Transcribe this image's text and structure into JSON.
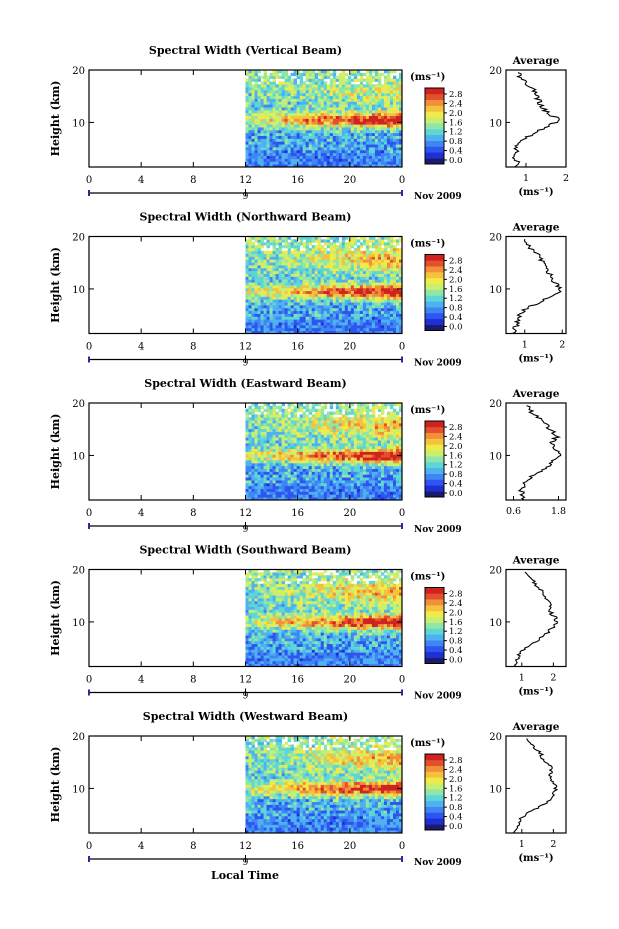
{
  "figure": {
    "x_axis_title": "Local Time",
    "date_label": "9",
    "month_label": "Nov 2009"
  },
  "colorbar": {
    "unit": "(ms⁻¹)",
    "ticks": [
      "0.0",
      "0.4",
      "0.8",
      "1.2",
      "1.6",
      "2.0",
      "2.4",
      "2.8"
    ],
    "colors": [
      "#1a1a6e",
      "#1f2fd6",
      "#2f55f0",
      "#3f86f5",
      "#4fb2f0",
      "#5fd6d6",
      "#8fe6a6",
      "#c8ef72",
      "#f0ea4a",
      "#f6c23e",
      "#f2903a",
      "#e3502e",
      "#d0221e"
    ]
  },
  "chart_data": [
    {
      "type": "heatmap",
      "title": "Spectral Width (Vertical Beam)",
      "xlabel": "",
      "ylabel": "Height (km)",
      "xticks": [
        "0",
        "4",
        "8",
        "12",
        "16",
        "20",
        "0"
      ],
      "xlim": [
        0,
        24
      ],
      "yticks": [
        "10",
        "20"
      ],
      "ylim": [
        1.5,
        20
      ],
      "data_start_hour": 12,
      "data_end_hour": 24,
      "colorbar_ticks": [
        "0.0",
        "0.4",
        "0.8",
        "1.2",
        "1.6",
        "2.0",
        "2.4",
        "2.8"
      ],
      "high_band_km": 10.5,
      "average_profile": {
        "title": "Average",
        "xlabel": "(ms⁻¹)",
        "xticks": [
          "1",
          "2"
        ],
        "xlim": [
          0.5,
          2.0
        ],
        "yticks": [
          "10",
          "20"
        ],
        "ylim": [
          1.5,
          20
        ],
        "height_km": [
          1.5,
          2.5,
          3.5,
          4.5,
          5.5,
          6.5,
          7.5,
          8.5,
          9.5,
          10.5,
          11.5,
          12.5,
          13.5,
          14.5,
          15.5,
          16.5,
          17.5,
          18.5,
          19.5
        ],
        "values": [
          0.7,
          0.8,
          0.65,
          0.75,
          0.7,
          0.9,
          1.1,
          1.35,
          1.6,
          1.85,
          1.6,
          1.45,
          1.35,
          1.3,
          1.25,
          1.15,
          1.0,
          0.85,
          0.8
        ]
      }
    },
    {
      "type": "heatmap",
      "title": "Spectral Width (Northward Beam)",
      "xlabel": "",
      "ylabel": "Height (km)",
      "xticks": [
        "0",
        "4",
        "8",
        "12",
        "16",
        "20",
        "0"
      ],
      "xlim": [
        0,
        24
      ],
      "yticks": [
        "10",
        "20"
      ],
      "ylim": [
        1.5,
        20
      ],
      "data_start_hour": 12,
      "data_end_hour": 24,
      "colorbar_ticks": [
        "0.0",
        "0.4",
        "0.8",
        "1.2",
        "1.6",
        "2.0",
        "2.4",
        "2.8"
      ],
      "high_band_km": 9.5,
      "average_profile": {
        "title": "Average",
        "xlabel": "(ms⁻¹)",
        "xticks": [
          "1",
          "2"
        ],
        "xlim": [
          0.5,
          2.1
        ],
        "yticks": [
          "10",
          "20"
        ],
        "ylim": [
          1.5,
          20
        ],
        "height_km": [
          1.5,
          2.5,
          3.5,
          4.5,
          5.5,
          6.5,
          7.5,
          8.5,
          9.5,
          10.5,
          11.5,
          12.5,
          13.5,
          14.5,
          15.5,
          16.5,
          17.5,
          18.5,
          19.5
        ],
        "values": [
          0.7,
          0.75,
          0.8,
          0.85,
          0.9,
          1.1,
          1.4,
          1.7,
          2.0,
          1.9,
          1.75,
          1.7,
          1.6,
          1.55,
          1.45,
          1.35,
          1.2,
          1.05,
          1.0
        ]
      }
    },
    {
      "type": "heatmap",
      "title": "Spectral Width (Eastward Beam)",
      "xlabel": "",
      "ylabel": "Height (km)",
      "xticks": [
        "0",
        "4",
        "8",
        "12",
        "16",
        "20",
        "0"
      ],
      "xlim": [
        0,
        24
      ],
      "yticks": [
        "10",
        "20"
      ],
      "ylim": [
        1.5,
        20
      ],
      "data_start_hour": 12,
      "data_end_hour": 24,
      "colorbar_ticks": [
        "0.0",
        "0.4",
        "0.8",
        "1.2",
        "1.6",
        "2.0",
        "2.4",
        "2.8"
      ],
      "high_band_km": 10.0,
      "average_profile": {
        "title": "Average",
        "xlabel": "",
        "xticks": [
          "0.6",
          "1.8"
        ],
        "xlim": [
          0.4,
          2.0
        ],
        "yticks": [
          "10",
          "20"
        ],
        "ylim": [
          1.5,
          20
        ],
        "height_km": [
          1.5,
          2.5,
          3.5,
          4.5,
          5.5,
          6.5,
          7.5,
          8.5,
          9.5,
          10.5,
          11.5,
          12.5,
          13.5,
          14.5,
          15.5,
          16.5,
          17.5,
          18.5,
          19.5
        ],
        "values": [
          0.9,
          0.85,
          0.8,
          0.9,
          1.0,
          1.2,
          1.45,
          1.6,
          1.75,
          1.85,
          1.7,
          1.6,
          1.75,
          1.65,
          1.5,
          1.4,
          1.2,
          1.05,
          0.95
        ]
      }
    },
    {
      "type": "heatmap",
      "title": "Spectral Width (Southward Beam)",
      "xlabel": "",
      "ylabel": "Height (km)",
      "xticks": [
        "0",
        "4",
        "8",
        "12",
        "16",
        "20",
        "0"
      ],
      "xlim": [
        0,
        24
      ],
      "yticks": [
        "10",
        "20"
      ],
      "ylim": [
        1.5,
        20
      ],
      "data_start_hour": 12,
      "data_end_hour": 24,
      "colorbar_ticks": [
        "0.0",
        "0.4",
        "0.8",
        "1.2",
        "1.6",
        "2.0",
        "2.4",
        "2.8"
      ],
      "high_band_km": 10.0,
      "average_profile": {
        "title": "Average",
        "xlabel": "(ms⁻¹)",
        "xticks": [
          "1",
          "2"
        ],
        "xlim": [
          0.5,
          2.4
        ],
        "yticks": [
          "10",
          "20"
        ],
        "ylim": [
          1.5,
          20
        ],
        "height_km": [
          1.5,
          2.5,
          3.5,
          4.5,
          5.5,
          6.5,
          7.5,
          8.5,
          9.5,
          10.5,
          11.5,
          12.5,
          13.5,
          14.5,
          15.5,
          16.5,
          17.5,
          18.5,
          19.5
        ],
        "values": [
          0.8,
          0.85,
          0.9,
          1.0,
          1.2,
          1.5,
          1.75,
          1.9,
          2.05,
          2.1,
          1.95,
          1.85,
          1.9,
          1.8,
          1.7,
          1.55,
          1.4,
          1.25,
          1.1
        ]
      }
    },
    {
      "type": "heatmap",
      "title": "Spectral Width (Westward Beam)",
      "xlabel": "Local Time",
      "ylabel": "Height (km)",
      "xticks": [
        "0",
        "4",
        "8",
        "12",
        "16",
        "20",
        "0"
      ],
      "xlim": [
        0,
        24
      ],
      "yticks": [
        "10",
        "20"
      ],
      "ylim": [
        1.5,
        20
      ],
      "data_start_hour": 12,
      "data_end_hour": 24,
      "colorbar_ticks": [
        "0.0",
        "0.4",
        "0.8",
        "1.2",
        "1.6",
        "2.0",
        "2.4",
        "2.8"
      ],
      "high_band_km": 10.0,
      "average_profile": {
        "title": "Average",
        "xlabel": "(ms⁻¹)",
        "xticks": [
          "1",
          "2"
        ],
        "xlim": [
          0.5,
          2.4
        ],
        "yticks": [
          "10",
          "20"
        ],
        "ylim": [
          1.5,
          20
        ],
        "height_km": [
          1.5,
          2.5,
          3.5,
          4.5,
          5.5,
          6.5,
          7.5,
          8.5,
          9.5,
          10.5,
          11.5,
          12.5,
          13.5,
          14.5,
          15.5,
          16.5,
          17.5,
          18.5,
          19.5
        ],
        "values": [
          0.8,
          0.85,
          0.9,
          1.0,
          1.25,
          1.55,
          1.8,
          1.95,
          2.05,
          2.1,
          1.95,
          1.85,
          1.95,
          1.85,
          1.7,
          1.6,
          1.45,
          1.3,
          1.15
        ]
      }
    }
  ]
}
